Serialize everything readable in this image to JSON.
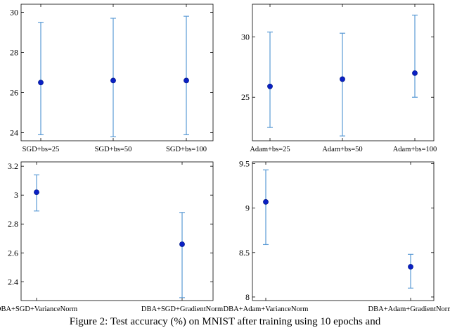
{
  "colors": {
    "errorbar": "#5b9bd5",
    "marker": "#0a1fc4",
    "axis": "#000000"
  },
  "caption": "Figure 2: Test accuracy (%) on MNIST after training using 10 epochs and",
  "chart_data": [
    {
      "type": "errorbar",
      "categories": [
        "SGD+bs=25",
        "SGD+bs=50",
        "SGD+bs=100"
      ],
      "values": [
        26.5,
        26.6,
        26.6
      ],
      "lower": [
        23.9,
        23.8,
        23.9
      ],
      "upper": [
        29.5,
        29.7,
        29.8
      ],
      "ylim": [
        23.6,
        30.4
      ],
      "yticks": [
        24,
        26,
        28,
        30
      ],
      "ytick_labels": [
        "24",
        "26",
        "28",
        "30"
      ]
    },
    {
      "type": "errorbar",
      "categories": [
        "Adam+bs=25",
        "Adam+bs=50",
        "Adam+bs=100"
      ],
      "values": [
        25.9,
        26.5,
        27.0
      ],
      "lower": [
        22.5,
        21.8,
        25.0
      ],
      "upper": [
        30.4,
        30.3,
        31.8
      ],
      "ylim": [
        21.4,
        32.7
      ],
      "yticks": [
        25,
        30
      ],
      "ytick_labels": [
        "25",
        "30"
      ]
    },
    {
      "type": "errorbar",
      "categories": [
        "DBA+SGD+VarianceNorm",
        "DBA+SGD+GradientNorm"
      ],
      "values": [
        3.02,
        2.66
      ],
      "lower": [
        2.89,
        2.29
      ],
      "upper": [
        3.14,
        2.88
      ],
      "ylim": [
        2.27,
        3.23
      ],
      "yticks": [
        2.4,
        2.6,
        2.8,
        3.0,
        3.2
      ],
      "ytick_labels": [
        "2.4",
        "2.6",
        "2.8",
        "3",
        "3.2"
      ]
    },
    {
      "type": "errorbar",
      "categories": [
        "DBA+Adam+VarianceNorm",
        "DBA+Adam+GradientNorm"
      ],
      "values": [
        9.07,
        8.34
      ],
      "lower": [
        8.59,
        8.1
      ],
      "upper": [
        9.43,
        8.48
      ],
      "ylim": [
        7.96,
        9.52
      ],
      "yticks": [
        8,
        8.5,
        9,
        9.5
      ],
      "ytick_labels": [
        "8",
        "8.5",
        "9",
        "9.5"
      ]
    }
  ]
}
